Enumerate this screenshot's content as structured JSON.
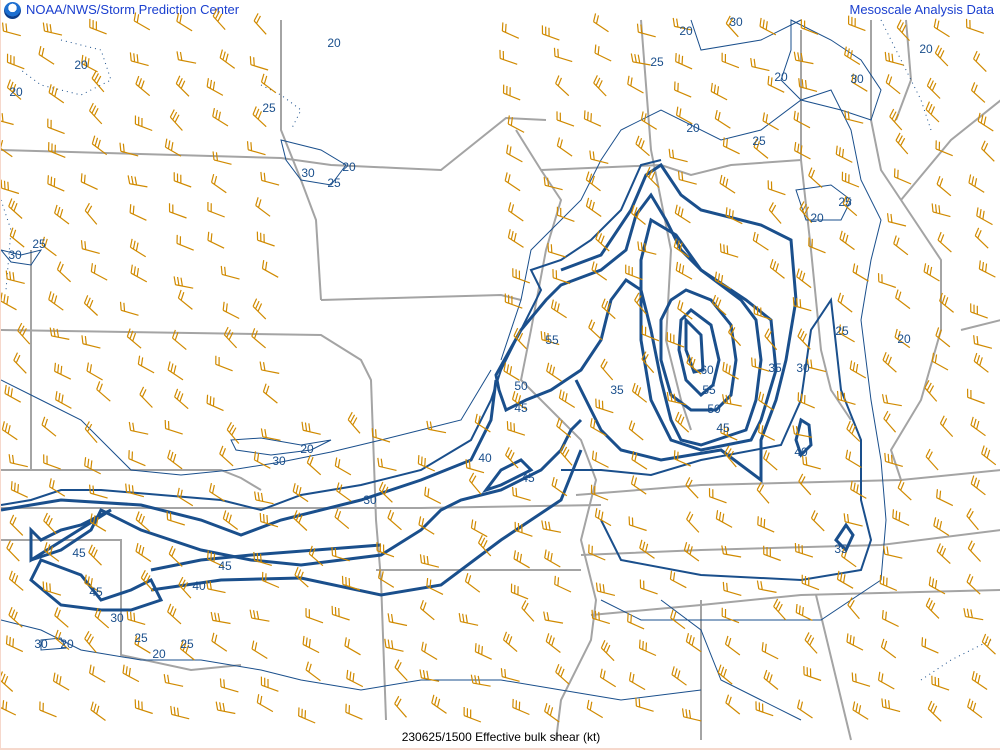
{
  "header": {
    "title": "NOAA/NWS/Storm Prediction Center",
    "right_title": "Mesoscale Analysis Data",
    "logo_icon": "noaa-logo-icon"
  },
  "footer": {
    "caption": "230625/1500 Effective bulk shear (kt)"
  },
  "map": {
    "parameter": "Effective bulk shear",
    "units": "kt",
    "contour_interval": 5,
    "contour_labels": [
      "20",
      "20",
      "20",
      "25",
      "20",
      "30",
      "25",
      "30",
      "25",
      "20",
      "30",
      "25",
      "20",
      "30",
      "20",
      "20",
      "25",
      "20",
      "25",
      "25",
      "20",
      "55",
      "60",
      "55",
      "50",
      "45",
      "35",
      "50",
      "45",
      "35",
      "30",
      "40",
      "40",
      "45",
      "30",
      "20",
      "30",
      "35",
      "45",
      "45",
      "45",
      "40",
      "30",
      "25",
      "20",
      "25",
      "30",
      "20"
    ],
    "colors": {
      "contour": "#1a4f8c",
      "wind_barb": "#d08a00",
      "state_border": "#a4a4a4",
      "header_text": "#1a3fcf"
    }
  }
}
